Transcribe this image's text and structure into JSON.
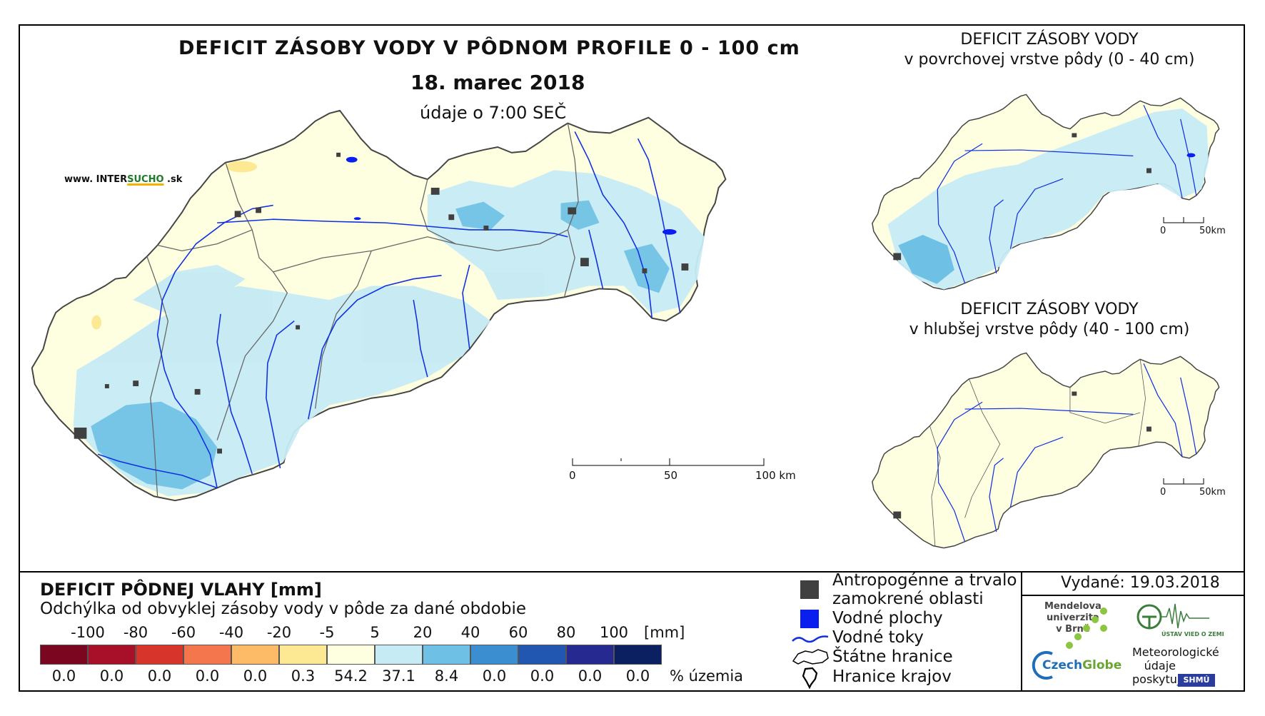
{
  "title": "DEFICIT ZÁSOBY VODY V PÔDNOM PROFILE 0 - 100 cm",
  "date": "18. marec 2018",
  "time_note": "údaje o 7:00 SEČ",
  "website": {
    "prefix": "www. INTER",
    "accent": "SUCHO",
    "suffix": " .sk"
  },
  "inset_top": {
    "line1": "DEFICIT ZÁSOBY VODY",
    "line2": "v povrchovej vrstve pôdy (0 - 40 cm)"
  },
  "inset_bottom": {
    "line1": "DEFICIT ZÁSOBY VODY",
    "line2": "v hlubšej vrstve pôdy (40 - 100 cm)"
  },
  "main_scale": {
    "labels": [
      "0",
      "50",
      "100 km"
    ]
  },
  "inset_scale": {
    "labels": [
      "0",
      "50km"
    ]
  },
  "legend": {
    "title": "DEFICIT PÔDNEJ VLAHY [mm]",
    "subtitle": "Odchýlka od obvyklej zásoby vody v pôde za dané obdobie",
    "unit": "[mm]",
    "boundaries": [
      "-100",
      "-80",
      "-60",
      "-40",
      "-20",
      "-5",
      "5",
      "20",
      "40",
      "60",
      "80",
      "100"
    ],
    "colors": [
      "#7a0620",
      "#a8102a",
      "#d7342b",
      "#f4764d",
      "#fdbb68",
      "#fde893",
      "#fefee0",
      "#c6ebf5",
      "#6ec1e4",
      "#3b8fd0",
      "#2157b0",
      "#262a90",
      "#0a2060"
    ],
    "percentages": [
      "0.0",
      "0.0",
      "0.0",
      "0.0",
      "0.0",
      "0.3",
      "54.2",
      "37.1",
      "8.4",
      "0.0",
      "0.0",
      "0.0",
      "0.0"
    ],
    "pct_unit": "% územia"
  },
  "symbols": [
    {
      "id": "urban",
      "label": "Antropogénne a trvalo",
      "label2": "zamokrené oblasti",
      "color": "#404040"
    },
    {
      "id": "water",
      "label": "Vodné plochy",
      "color": "#0a1ef0"
    },
    {
      "id": "rivers",
      "label": "Vodné toky",
      "color": "#1030e0"
    },
    {
      "id": "border",
      "label": "Štátne hranice"
    },
    {
      "id": "regions",
      "label": "Hranice krajov"
    }
  ],
  "issued": "Vydané: 19.03.2018",
  "logos": {
    "mendel": [
      "Mendelova",
      "univerzita",
      "v Brně"
    ],
    "czechglobe_a": "Czech",
    "czechglobe_b": "Globe",
    "uvz": "ÚSTAV VIED O ZEMI",
    "met": [
      "Meteorologické",
      "údaje",
      "poskytuje:"
    ],
    "shmu": "SHMÚ"
  }
}
